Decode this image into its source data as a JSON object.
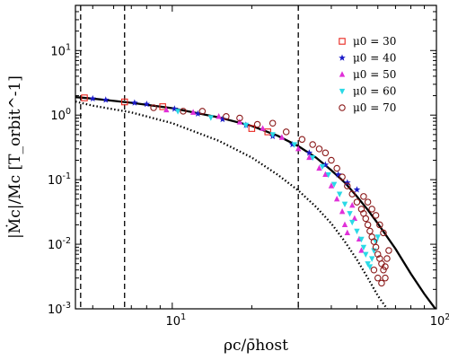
{
  "chart_data": {
    "type": "scatter",
    "xlabel": "ρc/ρ̄host",
    "ylabel": "|Ṁc|/Mc [T_orbit^-1]",
    "xscale": "log",
    "yscale": "log",
    "xlim": [
      4.3,
      100
    ],
    "ylim": [
      0.001,
      50
    ],
    "x_tick_labels": [
      {
        "value": 10,
        "base": "10",
        "exp": "1"
      },
      {
        "value": 100,
        "base": "10",
        "exp": "2"
      }
    ],
    "y_tick_labels": [
      {
        "value": 0.001,
        "base": "10",
        "exp": "-3"
      },
      {
        "value": 0.01,
        "base": "10",
        "exp": "-2"
      },
      {
        "value": 0.1,
        "base": "10",
        "exp": "-1"
      },
      {
        "value": 1,
        "base": "10",
        "exp": "0"
      },
      {
        "value": 10,
        "base": "10",
        "exp": "1"
      }
    ],
    "legend_position": "top-right",
    "vertical_lines": [
      4.5,
      6.6,
      30
    ],
    "model_curves": [
      {
        "style": "solid",
        "x": [
          4.3,
          5,
          7,
          10,
          15,
          20,
          25,
          30,
          35,
          40,
          45,
          50,
          55,
          60,
          70,
          80,
          90,
          100
        ],
        "y": [
          1.9,
          1.8,
          1.55,
          1.28,
          0.92,
          0.68,
          0.48,
          0.33,
          0.22,
          0.14,
          0.09,
          0.055,
          0.034,
          0.021,
          0.0085,
          0.0035,
          0.0017,
          0.00095
        ]
      },
      {
        "style": "dotted",
        "x": [
          4.3,
          5,
          7,
          10,
          15,
          20,
          25,
          30,
          35,
          40,
          45,
          50,
          55,
          60,
          65
        ],
        "y": [
          1.62,
          1.4,
          1.1,
          0.75,
          0.4,
          0.22,
          0.12,
          0.068,
          0.038,
          0.021,
          0.011,
          0.0058,
          0.003,
          0.0016,
          0.001
        ]
      }
    ],
    "series": [
      {
        "name": "μ0 = 30",
        "marker": "square",
        "color": "#e8261f",
        "x": [
          4.65,
          6.6,
          9.2,
          20,
          23
        ],
        "y": [
          1.85,
          1.6,
          1.35,
          0.62,
          0.55
        ]
      },
      {
        "name": "μ0 = 40",
        "marker": "star",
        "color": "#1a1ac8",
        "x": [
          5.0,
          5.6,
          7.2,
          8.0,
          10.2,
          12.5,
          15.5,
          19,
          24,
          28.5,
          33,
          38,
          42.5,
          46,
          50
        ],
        "y": [
          1.8,
          1.72,
          1.55,
          1.48,
          1.25,
          1.05,
          0.86,
          0.7,
          0.47,
          0.35,
          0.26,
          0.17,
          0.12,
          0.09,
          0.07
        ]
      },
      {
        "name": "μ0 = 50",
        "marker": "triangle-up",
        "color": "#e030d8",
        "x": [
          9.5,
          12,
          15,
          18,
          22,
          26,
          30,
          33,
          36,
          38,
          40,
          42,
          44,
          45,
          46,
          48,
          49,
          51,
          52
        ],
        "y": [
          1.2,
          1.1,
          0.95,
          0.78,
          0.62,
          0.45,
          0.3,
          0.22,
          0.15,
          0.12,
          0.08,
          0.05,
          0.032,
          0.02,
          0.015,
          0.04,
          0.025,
          0.012,
          0.008
        ]
      },
      {
        "name": "μ0 = 60",
        "marker": "triangle-down",
        "color": "#2ad9e6",
        "x": [
          10.5,
          14,
          19,
          24,
          29,
          34,
          37,
          39,
          41,
          43,
          45,
          47,
          48,
          50,
          52,
          53,
          54,
          55,
          56,
          57,
          58,
          59,
          60
        ],
        "y": [
          1.15,
          0.92,
          0.7,
          0.5,
          0.35,
          0.22,
          0.16,
          0.12,
          0.085,
          0.06,
          0.042,
          0.03,
          0.022,
          0.016,
          0.012,
          0.009,
          0.007,
          0.005,
          0.0045,
          0.006,
          0.008,
          0.011,
          0.013
        ]
      },
      {
        "name": "μ0 = 70",
        "marker": "circle",
        "color": "#8b1a1a",
        "x": [
          8.5,
          11,
          13,
          16,
          18,
          21,
          24,
          27,
          31,
          34,
          36,
          38,
          40,
          42,
          44,
          46,
          48,
          50,
          52,
          53,
          54,
          55,
          56,
          57,
          58,
          59,
          60,
          61,
          62,
          63,
          64,
          65,
          66,
          58,
          60,
          62,
          64,
          63,
          61,
          59,
          57,
          55,
          53
        ],
        "y": [
          1.3,
          1.15,
          1.15,
          0.95,
          0.9,
          0.72,
          0.75,
          0.55,
          0.42,
          0.35,
          0.3,
          0.26,
          0.2,
          0.15,
          0.11,
          0.08,
          0.06,
          0.045,
          0.035,
          0.03,
          0.025,
          0.02,
          0.016,
          0.013,
          0.011,
          0.009,
          0.007,
          0.006,
          0.005,
          0.004,
          0.0045,
          0.006,
          0.008,
          0.004,
          0.003,
          0.0025,
          0.003,
          0.015,
          0.02,
          0.028,
          0.035,
          0.045,
          0.055
        ]
      }
    ]
  }
}
